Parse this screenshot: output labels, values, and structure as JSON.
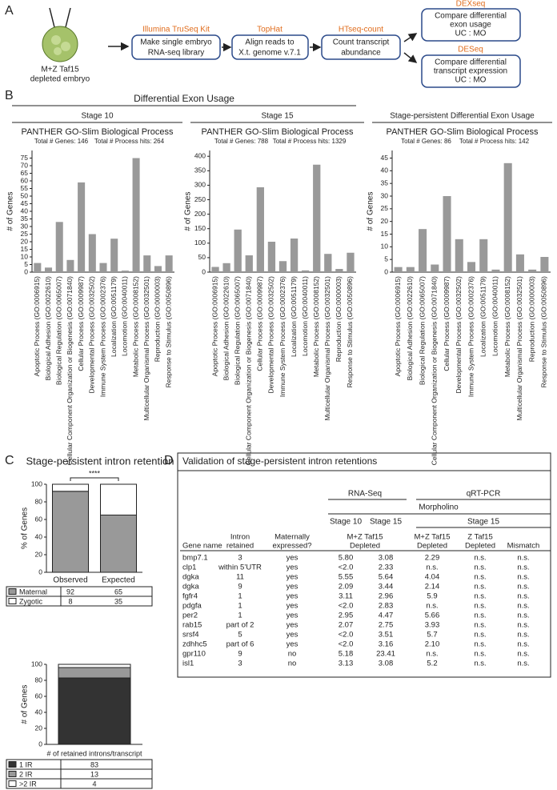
{
  "panel_labels": [
    "A",
    "B",
    "C",
    "D"
  ],
  "diagram": {
    "embryo": [
      "M+Z Taf15",
      "depleted embryo"
    ],
    "steps": [
      {
        "tool": "Illumina TruSeq Kit",
        "lines": [
          "Make single embryo",
          "RNA-seq library"
        ]
      },
      {
        "tool": "TopHat",
        "lines": [
          "Align reads to",
          "X.t. genome v.7.1"
        ]
      },
      {
        "tool": "HTseq-count",
        "lines": [
          "Count transcript",
          "abundance"
        ]
      },
      {
        "tool": "DEXseq",
        "lines": [
          "Compare differential",
          "exon usage",
          "UC : MO"
        ]
      },
      {
        "tool": "DESeq",
        "lines": [
          "Compare differential",
          "transcript expression",
          "UC : MO"
        ]
      }
    ]
  },
  "panel_b_title": "Differential Exon Usage",
  "chart_data": [
    {
      "type": "bar",
      "title": "Stage 10",
      "subtitle": "PANTHER GO-Slim Biological Process",
      "annotations": [
        "Total # Genes: 146",
        "Total # Process hits: 264"
      ],
      "ylabel": "# of Genes",
      "categories": [
        "Apoptotic Process (GO:0006915)",
        "Biological Adhesion (GO:0022610)",
        "Biological Regulation (GO:0065007)",
        "Cellular Component Organization or Biogenesis (GO:0071840)",
        "Cellular Process (GO:0009987)",
        "Developmental Process (GO:0032502)",
        "Immune System Process (GO:0002376)",
        "Localization (GO:0051179)",
        "Locomotion (GO:0040011)",
        "Metabolic Process (GO:0008152)",
        "Multicellular Organismal Process (GO:0032501)",
        "Reproduction (GO:0000003)",
        "Response to Stimulus (GO:0050896)"
      ],
      "values": [
        6,
        3,
        33,
        8,
        59,
        25,
        6,
        22,
        1,
        75,
        11,
        4,
        11
      ],
      "color": "#999999",
      "ylim": [
        0,
        80
      ],
      "yticks": [
        0,
        5,
        10,
        15,
        20,
        25,
        30,
        35,
        40,
        45,
        50,
        55,
        60,
        65,
        70,
        75
      ]
    },
    {
      "type": "bar",
      "title": "Stage 15",
      "subtitle": "PANTHER GO-Slim Biological Process",
      "annotations": [
        "Total # Genes: 788",
        "Total # Process hits: 1329"
      ],
      "ylabel": "# of Genes",
      "categories": [
        "Apoptotic Process (GO:0006915)",
        "Biological Adhesion (GO:0022610)",
        "Biological Regulation (GO:0065007)",
        "Cellular Component Organization or Biogenesis (GO:0071840)",
        "Cellular Process (GO:0009987)",
        "Developmental Process (GO:0032502)",
        "Immune System Process (GO:0002376)",
        "Localization (GO:0051179)",
        "Locomotion (GO:0040011)",
        "Metabolic Process (GO:0008152)",
        "Multicellular Organismal Process (GO:0032501)",
        "Reproduction (GO:0000003)",
        "Response to Stimulus (GO:0050896)"
      ],
      "values": [
        18,
        31,
        147,
        58,
        293,
        105,
        38,
        116,
        6,
        371,
        63,
        11,
        67
      ],
      "color": "#999999",
      "ylim": [
        0,
        420
      ],
      "yticks": [
        0,
        50,
        100,
        150,
        200,
        250,
        300,
        350,
        400
      ]
    },
    {
      "type": "bar",
      "title": "Stage-persistent Differential Exon Usage",
      "subtitle": "PANTHER GO-Slim Biological Process",
      "annotations": [
        "Total # Genes: 86",
        "Total # Process hits: 142"
      ],
      "ylabel": "# of Genes",
      "categories": [
        "Apoptotic Process (GO:0006915)",
        "Biological Adhesion (GO:0022610)",
        "Biological Regulation (GO:0065007)",
        "Cellular Component Organization or Biogenesis (GO:0071840)",
        "Cellular Process (GO:0009987)",
        "Developmental Process (GO:0032502)",
        "Immune System Process (GO:0002376)",
        "Localization (GO:0051179)",
        "Locomotion (GO:0040011)",
        "Metabolic Process (GO:0008152)",
        "Multicellular Organismal Process (GO:0032501)",
        "Reproduction (GO:0000003)",
        "Response to Stimulus (GO:0050896)"
      ],
      "values": [
        2,
        2,
        17,
        3,
        30,
        13,
        4,
        13,
        1,
        43,
        7,
        1,
        6
      ],
      "color": "#999999",
      "ylim": [
        0,
        48
      ],
      "yticks": [
        0,
        5,
        10,
        15,
        20,
        25,
        30,
        35,
        40,
        45
      ]
    },
    {
      "type": "stacked-bar",
      "title": "Stage-persistent intron retention",
      "ylabel": "% of Genes",
      "annotations": [
        "****"
      ],
      "categories": [
        "Observed",
        "Expected"
      ],
      "series": [
        {
          "name": "Maternal",
          "color": "#999999",
          "values": [
            92,
            65
          ]
        },
        {
          "name": "Zygotic",
          "color": "#ffffff",
          "values": [
            8,
            35
          ]
        }
      ],
      "ylim": [
        0,
        100
      ],
      "yticks": [
        0,
        20,
        40,
        60,
        80,
        100
      ]
    },
    {
      "type": "stacked-bar",
      "ylabel": "# of Genes",
      "xlabel": "# of retained introns/transcript",
      "categories": [
        null
      ],
      "series": [
        {
          "name": "1 IR",
          "color": "#333333",
          "values": [
            83
          ]
        },
        {
          "name": "2 IR",
          "color": "#999999",
          "values": [
            13
          ]
        },
        {
          "name": ">2 IR",
          "color": "#ffffff",
          "values": [
            4
          ]
        }
      ],
      "ylim": [
        0,
        100
      ],
      "yticks": [
        0,
        20,
        40,
        60,
        80,
        100
      ]
    }
  ],
  "table": {
    "title": "Validation of stage-persistent intron retentions",
    "groups": [
      "RNA-Seq",
      "qRT-PCR",
      "Morpholino",
      "Stage 10",
      "Stage 15",
      "Stage 15"
    ],
    "columns": [
      [
        "Gene name"
      ],
      [
        "Intron",
        "retained"
      ],
      [
        "Maternally",
        "expressed?"
      ],
      [
        "M+Z Taf15",
        "Depleted"
      ],
      [
        "M+Z Taf15",
        "Depleted"
      ],
      [
        "Z Taf15",
        "Depleted"
      ],
      [
        "Mismatch"
      ]
    ],
    "rows": [
      [
        "bmp7.1",
        "3",
        "yes",
        "5.80",
        "3.08",
        "2.29",
        "n.s.",
        "n.s."
      ],
      [
        "clp1",
        "within 5’UTR",
        "yes",
        "<2.0",
        "2.33",
        "n.s.",
        "n.s.",
        "n.s."
      ],
      [
        "dgka",
        "11",
        "yes",
        "5.55",
        "5.64",
        "4.04",
        "n.s.",
        "n.s."
      ],
      [
        "dgka",
        "9",
        "yes",
        "2.09",
        "3.44",
        "2.14",
        "n.s.",
        "n.s."
      ],
      [
        "fgfr4",
        "1",
        "yes",
        "3.11",
        "2.96",
        "5.9",
        "n.s.",
        "n.s."
      ],
      [
        "pdgfa",
        "1",
        "yes",
        "<2.0",
        "2.83",
        "n.s.",
        "n.s.",
        "n.s."
      ],
      [
        "per2",
        "1",
        "yes",
        "2.95",
        "4.47",
        "5.66",
        "n.s.",
        "n.s."
      ],
      [
        "rab15",
        "part of 2",
        "yes",
        "2.07",
        "2.75",
        "3.93",
        "n.s.",
        "n.s."
      ],
      [
        "srsf4",
        "5",
        "yes",
        "<2.0",
        "3.51",
        "5.7",
        "n.s.",
        "n.s."
      ],
      [
        "zdhhc5",
        "part of 6",
        "yes",
        "<2.0",
        "3.16",
        "2.10",
        "n.s.",
        "n.s."
      ],
      [
        "gpr110",
        "9",
        "no",
        "5.18",
        "23.41",
        "n.s.",
        "n.s.",
        "n.s."
      ],
      [
        "isl1",
        "3",
        "no",
        "3.13",
        "3.08",
        "5.2",
        "n.s.",
        "n.s."
      ]
    ]
  }
}
